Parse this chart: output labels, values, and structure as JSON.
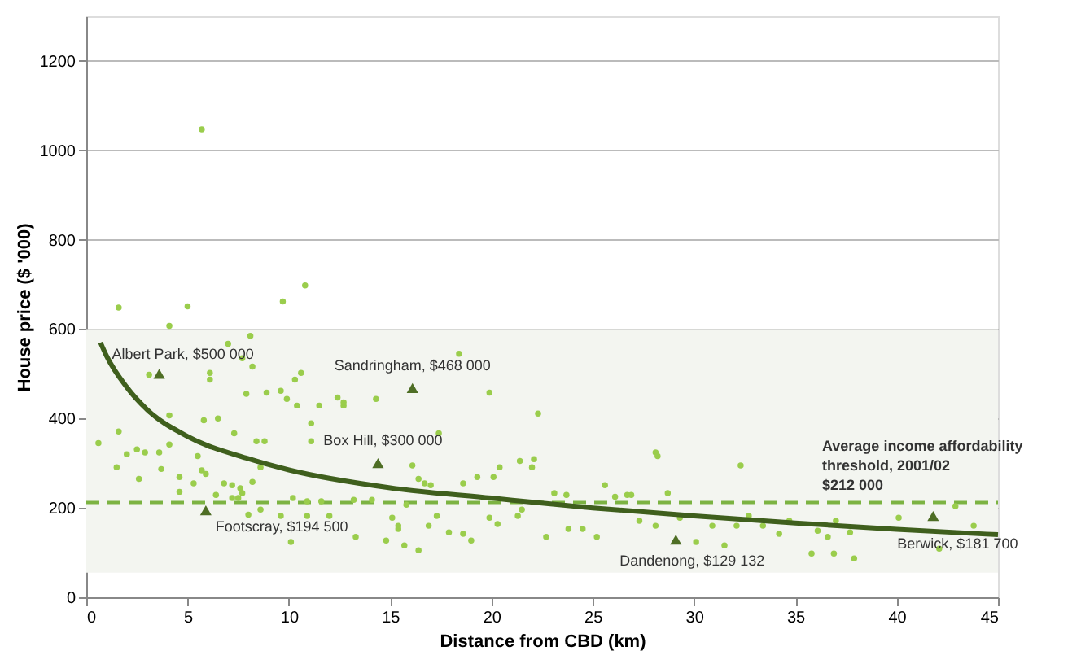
{
  "chart_data": {
    "type": "scatter",
    "xlabel": "Distance from CBD (km)",
    "ylabel": "House price ($ '000)",
    "xlim": [
      0,
      45
    ],
    "xticks": [
      0,
      5,
      10,
      15,
      20,
      25,
      30,
      35,
      40,
      45
    ],
    "ylim": [
      0,
      1300
    ],
    "yticks": [
      0,
      200,
      400,
      600,
      800,
      1000,
      1200
    ],
    "grid": "y",
    "series": [
      {
        "marker": "circle",
        "color": "#9acd4c",
        "x": [
          5.7,
          10.8,
          9.7,
          5.0,
          1.6,
          4.1,
          8.1,
          7.0,
          3.1,
          6.1,
          6.1,
          7.7,
          8.2,
          7.9,
          8.9,
          9.6,
          9.9,
          10.3,
          10.6,
          10.4,
          11.5,
          12.4,
          12.7,
          11.1,
          11.1,
          14.3,
          4.1,
          5.8,
          6.5,
          7.3,
          8.4,
          8.8,
          1.6,
          0.6,
          2.0,
          2.5,
          2.9,
          3.6,
          4.1,
          1.5,
          2.6,
          3.7,
          5.5,
          5.7,
          5.9,
          4.6,
          5.3,
          6.8,
          4.6,
          6.4,
          7.2,
          7.6,
          7.2,
          7.5,
          7.7,
          8.2,
          8.6,
          10.2,
          10.9,
          11.6,
          13.2,
          10.1,
          10.9,
          12.0,
          13.3,
          14.8,
          15.4,
          8.0,
          9.6,
          8.6,
          18.4,
          19.9,
          22.3,
          12.7,
          17.4,
          16.1,
          16.4,
          16.7,
          17.0,
          18.6,
          19.3,
          20.1,
          20.4,
          21.4,
          22.0,
          22.1,
          23.1,
          23.7,
          25.6,
          26.1,
          26.7,
          26.9,
          28.1,
          15.1,
          15.4,
          15.7,
          16.4,
          16.9,
          17.3,
          17.9,
          18.6,
          19.0,
          19.9,
          20.3,
          21.3,
          21.5,
          22.7,
          23.8,
          24.5,
          25.2,
          14.1,
          15.8,
          28.2,
          32.3,
          28.7,
          29.3,
          27.3,
          28.1,
          30.1,
          30.9,
          31.5,
          32.1,
          32.7,
          33.4,
          34.2,
          34.7,
          35.8,
          36.1,
          36.6,
          36.9,
          37.0,
          37.7,
          37.9,
          40.1,
          42.1,
          42.9,
          43.8
        ],
        "values": [
          1047,
          698,
          662,
          651,
          648,
          607,
          585,
          567,
          498,
          502,
          487,
          535,
          516,
          455,
          458,
          462,
          444,
          487,
          502,
          429,
          429,
          447,
          429,
          389,
          349,
          444,
          407,
          396,
          400,
          367,
          349,
          349,
          371,
          345,
          320,
          331,
          324,
          324,
          342,
          291,
          265,
          287,
          316,
          284,
          276,
          269,
          255,
          255,
          236,
          229,
          251,
          244,
          222,
          222,
          233,
          258,
          291,
          222,
          215,
          215,
          218,
          124,
          182,
          182,
          135,
          127,
          160,
          185,
          182,
          196,
          545,
          458,
          411,
          436,
          367,
          295,
          265,
          255,
          251,
          255,
          269,
          269,
          291,
          305,
          291,
          309,
          233,
          229,
          251,
          225,
          229,
          229,
          324,
          178,
          153,
          116,
          105,
          160,
          182,
          145,
          142,
          127,
          178,
          164,
          182,
          196,
          135,
          153,
          153,
          135,
          218,
          207,
          316,
          295,
          233,
          178,
          171,
          160,
          124,
          160,
          116,
          160,
          182,
          160,
          142,
          171,
          98,
          149,
          135,
          98,
          171,
          145,
          87,
          178,
          109,
          204,
          160
        ]
      },
      {
        "type": "line",
        "line_style": "solid",
        "color": "#3f5f1d",
        "x": [
          0.7,
          1,
          2,
          3,
          5,
          8,
          10,
          15,
          20,
          25,
          30,
          35,
          40,
          45
        ],
        "values": [
          570,
          540,
          470,
          420,
          360,
          310,
          285,
          245,
          222,
          200,
          182,
          166,
          152,
          140
        ]
      },
      {
        "type": "scatter",
        "marker": "triangle",
        "color": "#4e6e25",
        "x": [
          3.6,
          16.1,
          14.4,
          5.9,
          29.1,
          41.8
        ],
        "values": [
          500,
          468,
          300,
          194.5,
          129.132,
          181.7
        ]
      }
    ],
    "ref_lines": [
      {
        "axis": "y",
        "value": 212,
        "label": "Average income affordability\nthreshold, 2001/02\n$212 000",
        "color": "#7cb342",
        "line_style": "dashed"
      }
    ],
    "bands": [
      {
        "axis": "y",
        "from": 55,
        "to": 600,
        "color": "#f3f5f0"
      }
    ],
    "annotations": [
      {
        "text": "Albert Park, $500 000",
        "x": 3.6,
        "y": 500
      },
      {
        "text": "Sandringham, $468 000",
        "x": 16.1,
        "y": 468
      },
      {
        "text": "Box Hill, $300 000",
        "x": 14.4,
        "y": 300
      },
      {
        "text": "Footscray, $194 500",
        "x": 5.9,
        "y": 194.5
      },
      {
        "text": "Dandenong, $129 132",
        "x": 29.1,
        "y": 129.132
      },
      {
        "text": "Berwick, $181 700",
        "x": 41.8,
        "y": 181.7
      }
    ]
  }
}
